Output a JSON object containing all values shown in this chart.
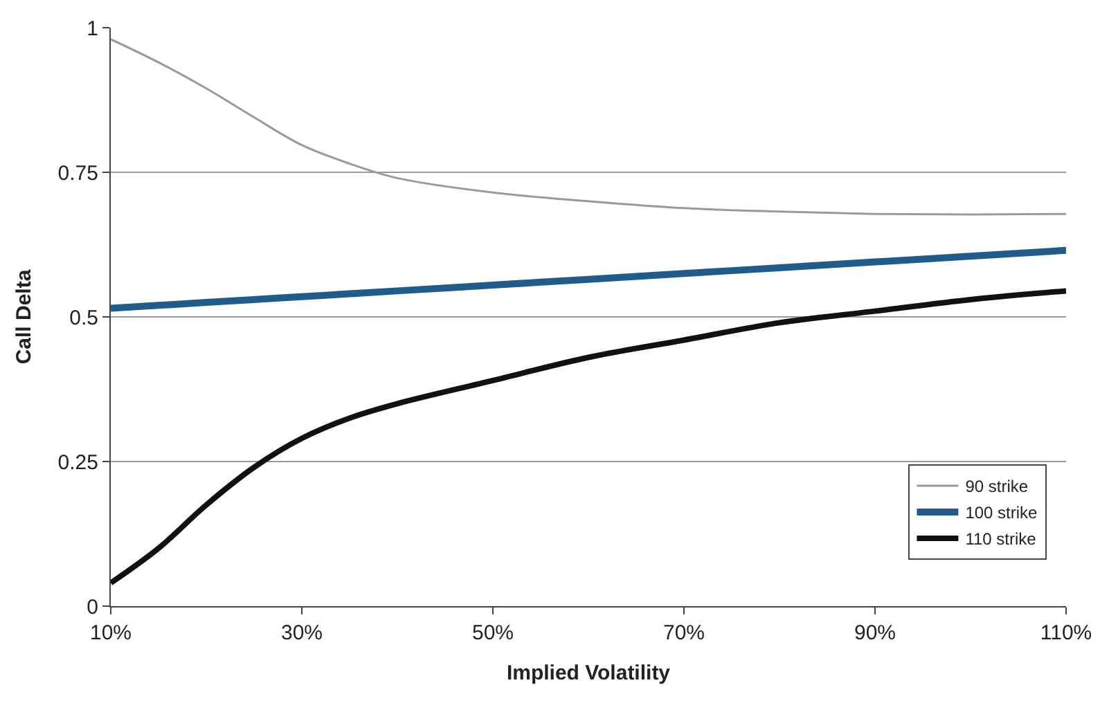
{
  "chart_data": {
    "type": "line",
    "xlabel": "Implied Volatility",
    "ylabel": "Call Delta",
    "x": [
      10,
      15,
      20,
      25,
      30,
      35,
      40,
      50,
      60,
      70,
      80,
      90,
      100,
      110
    ],
    "series": [
      {
        "name": "90 strike",
        "color": "#9a9a9a",
        "values": [
          0.98,
          0.94,
          0.895,
          0.845,
          0.797,
          0.765,
          0.74,
          0.715,
          0.7,
          0.688,
          0.682,
          0.678,
          0.677,
          0.678
        ]
      },
      {
        "name": "100 strike",
        "color": "#1f5c8b",
        "values": [
          0.515,
          0.52,
          0.525,
          0.53,
          0.535,
          0.54,
          0.545,
          0.555,
          0.565,
          0.575,
          0.585,
          0.595,
          0.605,
          0.615
        ]
      },
      {
        "name": "110 strike",
        "color": "#111111",
        "values": [
          0.04,
          0.1,
          0.175,
          0.24,
          0.29,
          0.325,
          0.35,
          0.39,
          0.43,
          0.46,
          0.49,
          0.51,
          0.53,
          0.545
        ]
      }
    ],
    "xlim": [
      10,
      110
    ],
    "xticks": [
      {
        "value": 10,
        "label": "10%"
      },
      {
        "value": 30,
        "label": "30%"
      },
      {
        "value": 50,
        "label": "50%"
      },
      {
        "value": 70,
        "label": "70%"
      },
      {
        "value": 90,
        "label": "90%"
      },
      {
        "value": 110,
        "label": "110%"
      }
    ],
    "ylim": [
      0,
      1
    ],
    "yticks": [
      0,
      0.25,
      0.5,
      0.75,
      1
    ],
    "grid": "y",
    "legend": "bottom right",
    "marker": "none",
    "line_style": "solid"
  }
}
